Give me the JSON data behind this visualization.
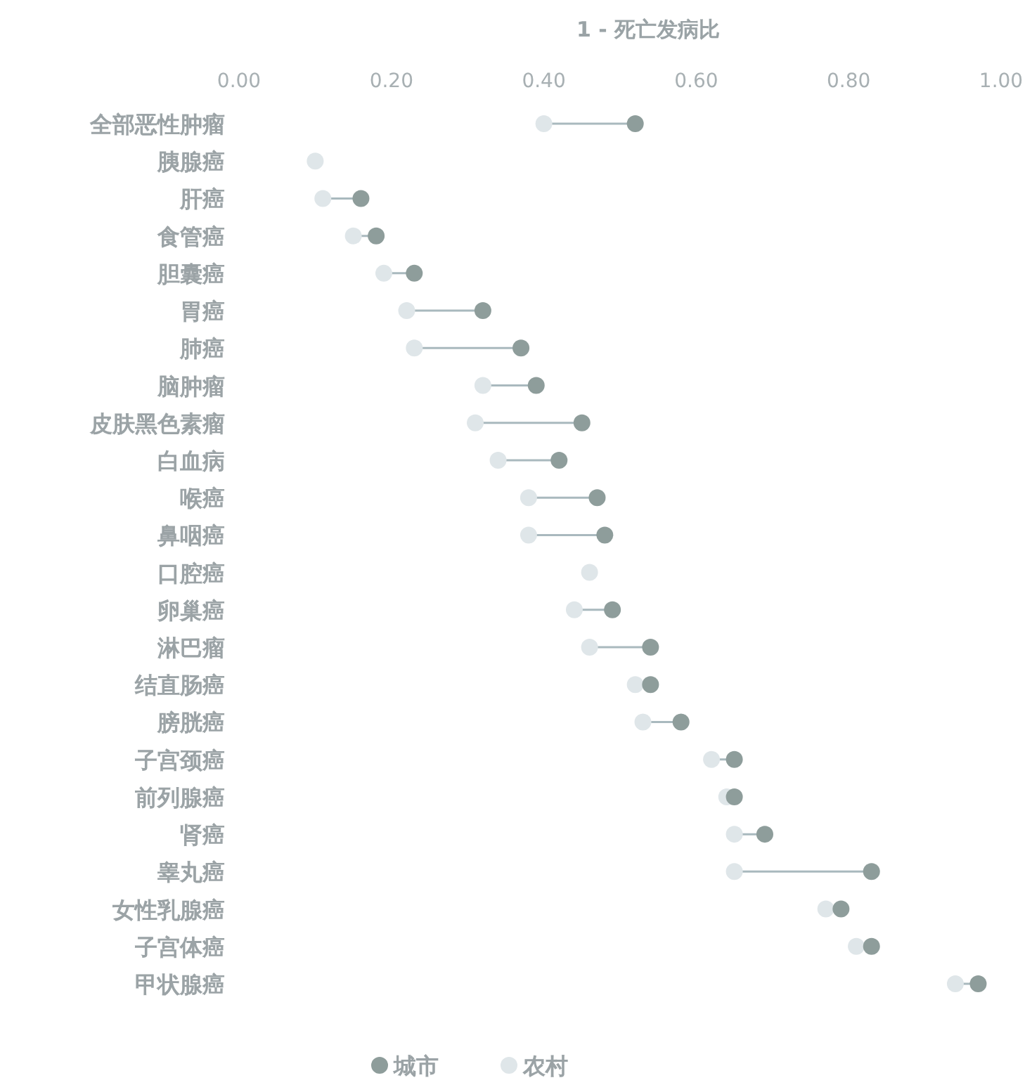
{
  "chart_data": {
    "type": "scatter",
    "orientation": "horizontal",
    "xlabel": "1 - 死亡发病比",
    "categories": [
      "全部恶性肿瘤",
      "胰腺癌",
      "肝癌",
      "食管癌",
      "胆囊癌",
      "胃癌",
      "肺癌",
      "脑肿瘤",
      "皮肤黑色素瘤",
      "白血病",
      "喉癌",
      "鼻咽癌",
      "口腔癌",
      "卵巢癌",
      "淋巴瘤",
      "结直肠癌",
      "膀胱癌",
      "子宫颈癌",
      "前列腺癌",
      "肾癌",
      "睾丸癌",
      "女性乳腺癌",
      "子宫体癌",
      "甲状腺癌"
    ],
    "series": [
      {
        "name": "城市",
        "color": "#8e9d9b",
        "values": [
          0.52,
          null,
          0.16,
          0.18,
          0.23,
          0.32,
          0.37,
          0.39,
          0.45,
          0.42,
          0.47,
          0.48,
          null,
          0.49,
          0.54,
          0.54,
          0.58,
          0.65,
          0.65,
          0.69,
          0.83,
          0.79,
          0.83,
          0.97
        ]
      },
      {
        "name": "农村",
        "color": "#dfe6e9",
        "values": [
          0.4,
          0.1,
          0.11,
          0.15,
          0.19,
          0.22,
          0.23,
          0.32,
          0.31,
          0.34,
          0.38,
          0.38,
          0.46,
          0.44,
          0.46,
          0.52,
          0.53,
          0.62,
          0.64,
          0.65,
          0.65,
          0.77,
          0.81,
          0.94
        ]
      }
    ],
    "xlim": [
      0,
      1
    ],
    "xticks": [
      {
        "value": 0,
        "label": "0.00"
      },
      {
        "value": 0.2,
        "label": "0.20"
      },
      {
        "value": 0.4,
        "label": "0.40"
      },
      {
        "value": 0.6,
        "label": "0.60"
      },
      {
        "value": 0.8,
        "label": "0.80"
      },
      {
        "value": 1,
        "label": "1.00"
      }
    ],
    "grid": false,
    "legend": "bottom",
    "marker": "circle"
  }
}
